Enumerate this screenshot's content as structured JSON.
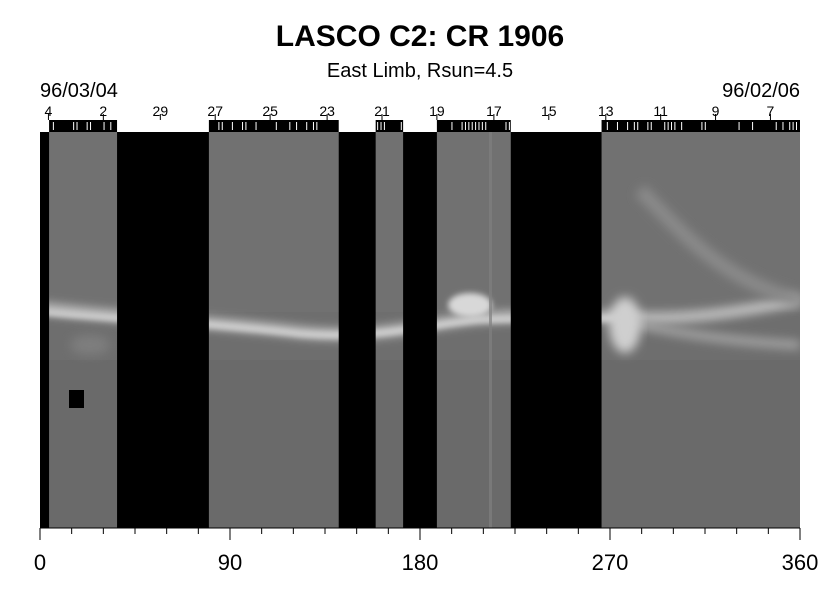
{
  "chart_data": {
    "type": "heatmap",
    "title": "LASCO C2: CR 1906",
    "subtitle": "East Limb, Rsun=4.5",
    "date_start": "96/03/04",
    "date_end": "96/02/06",
    "x_ticks": [
      0,
      90,
      180,
      270,
      360
    ],
    "xlim": [
      0,
      360
    ],
    "top_day_labels": [
      {
        "label": "4",
        "x": 4
      },
      {
        "label": "2",
        "x": 30
      },
      {
        "label": "29",
        "x": 57
      },
      {
        "label": "27",
        "x": 83
      },
      {
        "label": "25",
        "x": 109
      },
      {
        "label": "23",
        "x": 136
      },
      {
        "label": "21",
        "x": 162
      },
      {
        "label": "19",
        "x": 188
      },
      {
        "label": "17",
        "x": 215
      },
      {
        "label": "15",
        "x": 241
      },
      {
        "label": "13",
        "x": 268
      },
      {
        "label": "11",
        "x": 294
      },
      {
        "label": "9",
        "x": 320
      },
      {
        "label": "7",
        "x": 346
      }
    ],
    "data_gaps": [
      [
        0,
        4.3
      ],
      [
        36.5,
        80
      ],
      [
        141.5,
        159
      ],
      [
        172,
        188
      ],
      [
        223,
        266
      ]
    ],
    "grid": false,
    "colormap": "grayscale"
  }
}
